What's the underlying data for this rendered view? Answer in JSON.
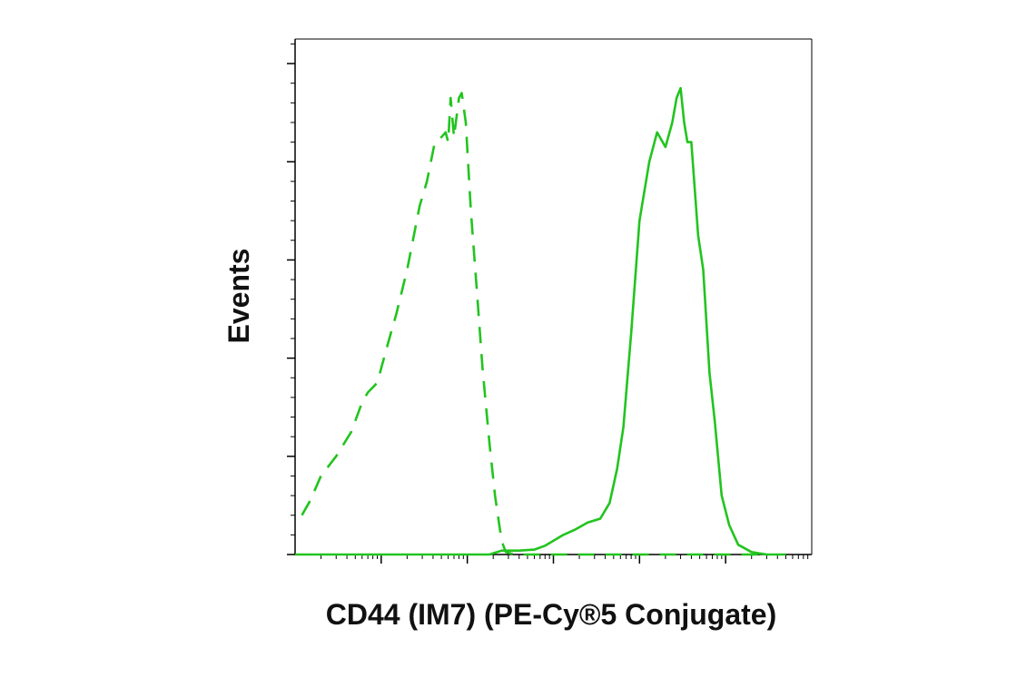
{
  "chart_data": {
    "type": "line",
    "title": "",
    "xlabel": "CD44 (IM7) (PE-Cy®5 Conjugate)",
    "ylabel": "Events",
    "x_scale": "log",
    "xlim": [
      10,
      10000000
    ],
    "ylim": [
      0,
      105
    ],
    "grid": false,
    "legend": "none",
    "x_major_ticks": [
      100,
      1000,
      10000,
      100000,
      1000000
    ],
    "y_major_ticks": [
      0,
      20,
      40,
      60,
      80,
      100
    ],
    "series": [
      {
        "style": "dashed",
        "color": "#22c41e",
        "x": [
          12,
          15,
          20,
          30,
          45,
          60,
          70,
          90,
          120,
          150,
          200,
          280,
          340,
          420,
          500,
          560,
          600,
          640,
          700,
          760,
          800,
          860,
          960,
          1100,
          1300,
          1500,
          1800,
          2100,
          2400,
          2600,
          2800,
          3200,
          4000,
          10000,
          100000,
          1000000,
          3000000
        ],
        "y": [
          8,
          11,
          16,
          20,
          25,
          31,
          33,
          35,
          43,
          49,
          58,
          71,
          76,
          84,
          85,
          86,
          84,
          93,
          85,
          90,
          93,
          94,
          88,
          70,
          53,
          38,
          23,
          12,
          5,
          2,
          0.5,
          0.2,
          0,
          0,
          0,
          0,
          0
        ]
      },
      {
        "style": "solid",
        "color": "#22c41e",
        "x": [
          10,
          100,
          1000,
          1800,
          2500,
          4000,
          6000,
          8000,
          10000,
          13000,
          18000,
          25000,
          35000,
          45000,
          55000,
          65000,
          80000,
          100000,
          130000,
          160000,
          200000,
          240000,
          270000,
          300000,
          330000,
          360000,
          400000,
          480000,
          550000,
          650000,
          750000,
          900000,
          1100000,
          1400000,
          2000000,
          3000000,
          5000000
        ],
        "y": [
          0,
          0,
          0,
          0,
          0.8,
          0.8,
          1,
          1.8,
          2.8,
          4,
          5.1,
          6.5,
          7.3,
          10.5,
          17.5,
          26,
          45,
          68,
          80,
          86,
          83,
          88,
          93,
          95,
          88,
          84,
          84,
          65,
          58,
          37,
          27,
          12,
          6,
          2,
          0.5,
          0,
          0
        ]
      }
    ]
  }
}
